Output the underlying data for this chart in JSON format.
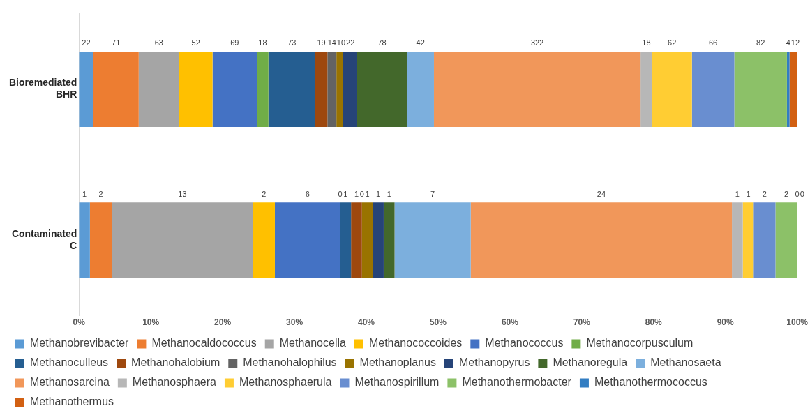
{
  "chart_data": {
    "type": "bar",
    "orientation": "horizontal",
    "stacked": true,
    "categories": [
      "Bioremediated\nBHR",
      "Contaminated\nC"
    ],
    "xlim": [
      0,
      100
    ],
    "xticks": [
      {
        "value": 0,
        "label": "0%"
      },
      {
        "value": 10,
        "label": "10%"
      },
      {
        "value": 20,
        "label": "20%"
      },
      {
        "value": 30,
        "label": "30%"
      },
      {
        "value": 40,
        "label": "40%"
      },
      {
        "value": 50,
        "label": "50%"
      },
      {
        "value": 60,
        "label": "60%"
      },
      {
        "value": 70,
        "label": "70%"
      },
      {
        "value": 80,
        "label": "80%"
      },
      {
        "value": 90,
        "label": "90%"
      },
      {
        "value": 100,
        "label": "100%"
      }
    ],
    "grid": false,
    "legend": "bottom",
    "series": [
      {
        "name": "Methanobrevibacter",
        "color": "#5b9bd5",
        "values": [
          1.97,
          1.515
        ]
      },
      {
        "name": "Methanocaldococcus",
        "color": "#ed7d31",
        "values": [
          6.34,
          3.03
        ]
      },
      {
        "name": "Methanocella",
        "color": "#a5a5a5",
        "values": [
          5.63,
          19.697
        ]
      },
      {
        "name": "Methanococcoides",
        "color": "#ffc000",
        "values": [
          4.65,
          3.03
        ]
      },
      {
        "name": "Methanococcus",
        "color": "#4472c4",
        "values": [
          6.17,
          9.091
        ]
      },
      {
        "name": "Methanocorpusculum",
        "color": "#70ad47",
        "values": [
          1.61,
          0
        ]
      },
      {
        "name": "Methanoculleus",
        "color": "#255e91",
        "values": [
          6.52,
          1.515
        ]
      },
      {
        "name": "Methanohalobium",
        "color": "#9e480e",
        "values": [
          1.7,
          1.515
        ]
      },
      {
        "name": "Methanohalophilus",
        "color": "#636363",
        "values": [
          1.25,
          0
        ]
      },
      {
        "name": "Methanoplanus",
        "color": "#997300",
        "values": [
          0.89,
          1.515
        ]
      },
      {
        "name": "Methanopyrus",
        "color": "#264478",
        "values": [
          1.97,
          1.515
        ]
      },
      {
        "name": "Methanoregula",
        "color": "#43682b",
        "values": [
          6.97,
          1.515
        ]
      },
      {
        "name": "Methanosaeta",
        "color": "#7cafdd",
        "values": [
          3.75,
          10.606
        ]
      },
      {
        "name": "Methanosarcina",
        "color": "#f1975a",
        "values": [
          28.77,
          36.364
        ]
      },
      {
        "name": "Methanosphaera",
        "color": "#b7b7b7",
        "values": [
          1.61,
          1.515
        ]
      },
      {
        "name": "Methanosphaerula",
        "color": "#ffcd33",
        "values": [
          5.54,
          1.515
        ]
      },
      {
        "name": "Methanospirillum",
        "color": "#698ed0",
        "values": [
          5.9,
          3.03
        ]
      },
      {
        "name": "Methanothermobacter",
        "color": "#8cc168",
        "values": [
          7.33,
          3.03
        ]
      },
      {
        "name": "Methanothermococcus",
        "color": "#327dc2",
        "values": [
          0.36,
          0
        ]
      },
      {
        "name": "Methanothermus",
        "color": "#d26012",
        "values": [
          1.07,
          0
        ]
      }
    ],
    "annotations": [
      "22",
      "71",
      "63",
      "52",
      "69",
      "18",
      "73",
      "19",
      "14",
      "10",
      "22",
      "78",
      "42",
      "322",
      "18",
      "62",
      "66",
      "82",
      "4",
      "12",
      "1",
      "2",
      "13",
      "2",
      "6",
      "0",
      "1",
      "1",
      "0",
      "1",
      "1",
      "1",
      "7",
      "24",
      "1",
      "1",
      "2",
      "2",
      "0",
      "0"
    ]
  }
}
